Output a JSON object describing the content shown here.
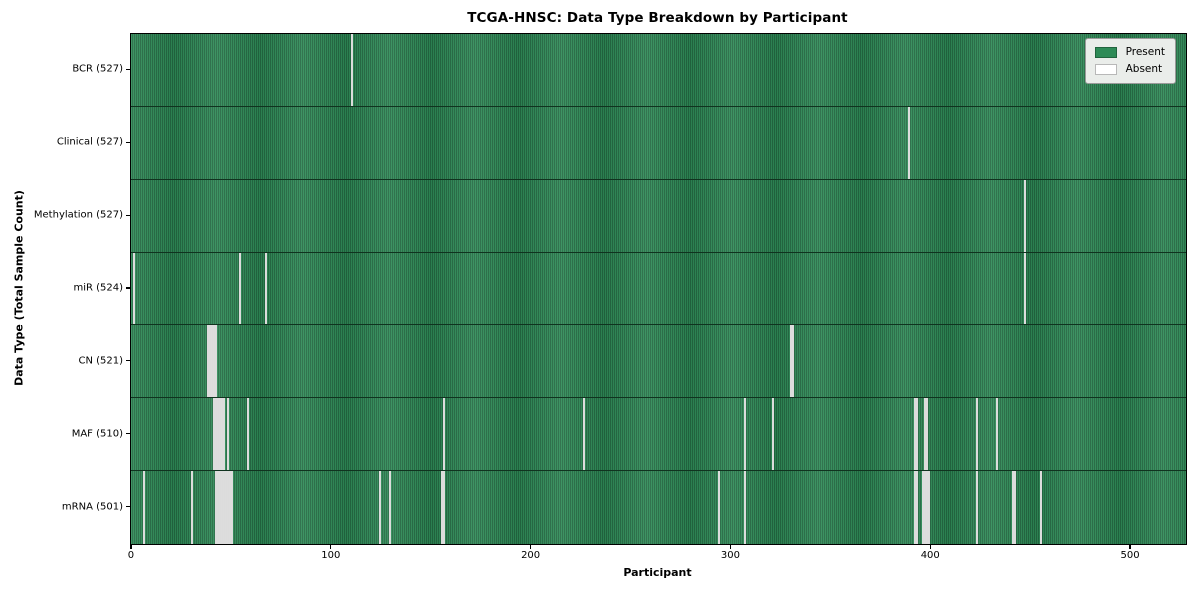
{
  "chart_data": {
    "type": "heatmap",
    "title": "TCGA-HNSC: Data Type Breakdown by Participant",
    "xlabel": "Participant",
    "ylabel": "Data Type (Total Sample Count)",
    "x_ticks": [
      0,
      100,
      200,
      300,
      400,
      500
    ],
    "n_participants": 528,
    "x_range": [
      -0.5,
      527.5
    ],
    "grid": false,
    "colors": {
      "present": "#2e8b57",
      "present_edge": "#17492d",
      "absent": "#ffffff",
      "plot_border": "#000000",
      "legend_bg": "#eaedea",
      "legend_border": "#9a9a9a"
    },
    "legend": {
      "position": "upper right",
      "items": [
        {
          "label": "Present",
          "color": "#2e8b57"
        },
        {
          "label": "Absent",
          "color": "#ffffff"
        }
      ]
    },
    "rows": [
      {
        "label": "BCR (527)",
        "present_count": 527,
        "absent_indices": [
          110
        ]
      },
      {
        "label": "Clinical (527)",
        "present_count": 527,
        "absent_indices": [
          389
        ]
      },
      {
        "label": "Methylation (527)",
        "present_count": 527,
        "absent_indices": [
          447
        ]
      },
      {
        "label": "miR (524)",
        "present_count": 524,
        "absent_indices": [
          1,
          54,
          67,
          447
        ]
      },
      {
        "label": "CN (521)",
        "present_count": 521,
        "absent_indices": [
          38,
          39,
          40,
          41,
          42,
          330,
          331
        ]
      },
      {
        "label": "MAF (510)",
        "present_count": 510,
        "absent_indices": [
          41,
          42,
          43,
          44,
          45,
          46,
          48,
          58,
          156,
          226,
          307,
          321,
          392,
          393,
          397,
          398,
          423,
          433
        ]
      },
      {
        "label": "mRNA (501)",
        "present_count": 501,
        "absent_indices": [
          6,
          30,
          42,
          43,
          44,
          45,
          46,
          47,
          48,
          49,
          50,
          124,
          129,
          155,
          156,
          294,
          307,
          392,
          393,
          396,
          397,
          398,
          399,
          423,
          441,
          442,
          455
        ]
      }
    ]
  }
}
